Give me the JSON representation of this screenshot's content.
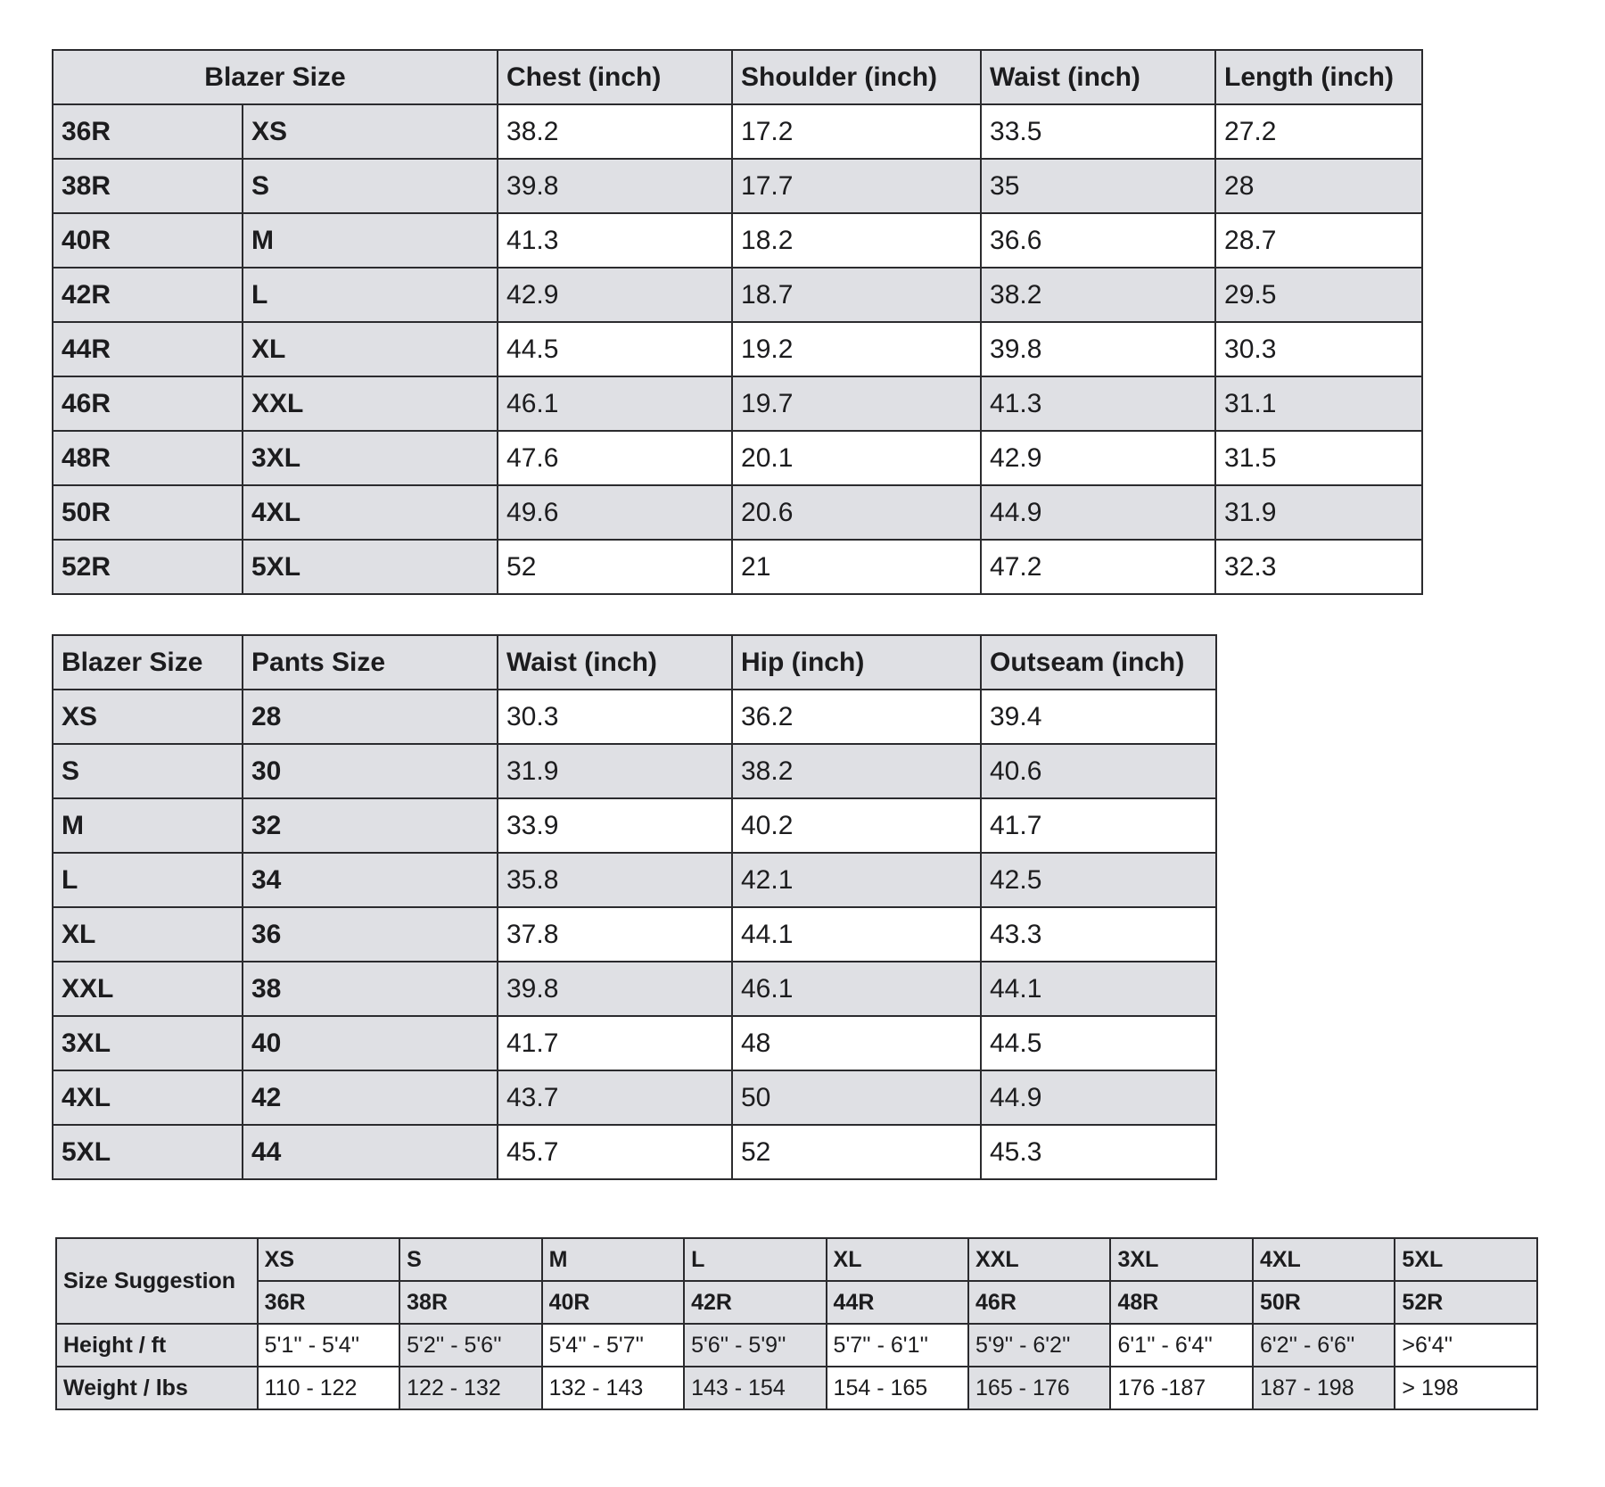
{
  "blazer_table": {
    "headers": [
      "Blazer Size",
      "Chest  (inch)",
      "Shoulder (inch)",
      "Waist (inch)",
      "Length (inch)"
    ],
    "rows": [
      [
        "36R",
        "XS",
        "38.2",
        "17.2",
        "33.5",
        "27.2"
      ],
      [
        "38R",
        "S",
        "39.8",
        "17.7",
        "35",
        "28"
      ],
      [
        "40R",
        "M",
        "41.3",
        "18.2",
        "36.6",
        "28.7"
      ],
      [
        "42R",
        "L",
        "42.9",
        "18.7",
        "38.2",
        "29.5"
      ],
      [
        "44R",
        "XL",
        "44.5",
        "19.2",
        "39.8",
        "30.3"
      ],
      [
        "46R",
        "XXL",
        "46.1",
        "19.7",
        "41.3",
        "31.1"
      ],
      [
        "48R",
        "3XL",
        "47.6",
        "20.1",
        "42.9",
        "31.5"
      ],
      [
        "50R",
        "4XL",
        "49.6",
        "20.6",
        "44.9",
        "31.9"
      ],
      [
        "52R",
        "5XL",
        "52",
        "21",
        "47.2",
        "32.3"
      ]
    ]
  },
  "pants_table": {
    "headers": [
      "Blazer Size",
      "Pants Size",
      "Waist (inch)",
      "Hip (inch)",
      "Outseam (inch)"
    ],
    "rows": [
      [
        "XS",
        "28",
        "30.3",
        "36.2",
        "39.4"
      ],
      [
        "S",
        "30",
        "31.9",
        "38.2",
        "40.6"
      ],
      [
        "M",
        "32",
        "33.9",
        "40.2",
        "41.7"
      ],
      [
        "L",
        "34",
        "35.8",
        "42.1",
        "42.5"
      ],
      [
        "XL",
        "36",
        "37.8",
        "44.1",
        "43.3"
      ],
      [
        "XXL",
        "38",
        "39.8",
        "46.1",
        "44.1"
      ],
      [
        "3XL",
        "40",
        "41.7",
        "48",
        "44.5"
      ],
      [
        "4XL",
        "42",
        "43.7",
        "50",
        "44.9"
      ],
      [
        "5XL",
        "44",
        "45.7",
        "52",
        "45.3"
      ]
    ]
  },
  "suggestion_table": {
    "title": "Size Suggestion",
    "letter_sizes": [
      "XS",
      "S",
      "M",
      "L",
      "XL",
      "XXL",
      "3XL",
      "4XL",
      "5XL"
    ],
    "blazer_sizes": [
      "36R",
      "38R",
      "40R",
      "42R",
      "44R",
      "46R",
      "48R",
      "50R",
      "52R"
    ],
    "rows": [
      {
        "label": "Height / ft",
        "values": [
          "5'1'' - 5'4''",
          "5'2'' - 5'6''",
          "5'4'' - 5'7''",
          "5'6'' - 5'9''",
          "5'7'' - 6'1''",
          "5'9'' - 6'2''",
          "6'1'' - 6'4''",
          "6'2'' - 6'6''",
          ">6'4''"
        ]
      },
      {
        "label": "Weight / lbs",
        "values": [
          "110 - 122",
          "122 - 132",
          "132 - 143",
          "143 - 154",
          "154 - 165",
          "165 - 176",
          "176 -187",
          "187 - 198",
          "> 198"
        ]
      }
    ]
  },
  "colors": {
    "header_gray": "#dfe0e4",
    "border": "#2b2b2e"
  }
}
